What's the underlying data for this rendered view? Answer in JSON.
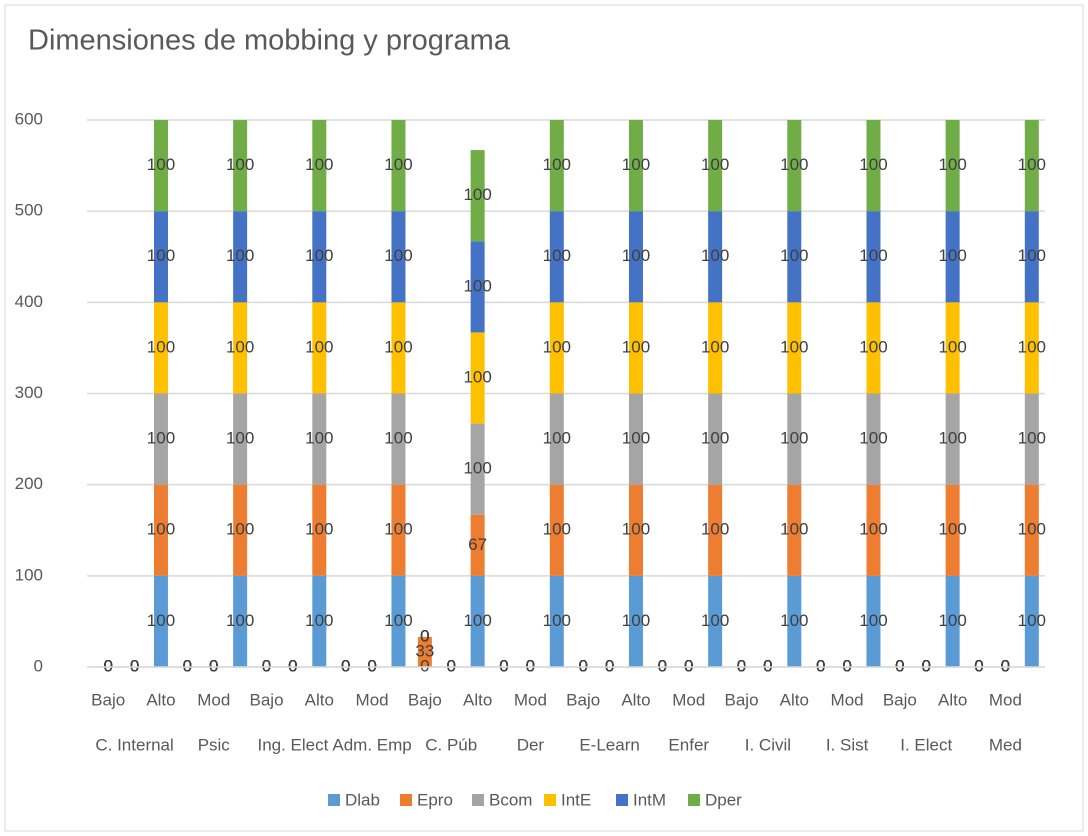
{
  "chart_data": {
    "type": "stacked_bar",
    "title": "Dimensiones de mobbing y programa",
    "categories": [
      "Bajo",
      null,
      "Alto",
      null,
      "Mod",
      null,
      "Bajo",
      null,
      "Alto",
      null,
      "Mod",
      null,
      "Bajo",
      null,
      "Alto",
      null,
      "Mod",
      null,
      "Bajo",
      null,
      "Alto",
      null,
      "Mod",
      null,
      "Bajo",
      null,
      "Alto",
      null,
      "Mod",
      null,
      "Bajo",
      null,
      "Alto",
      null,
      "Mod",
      null
    ],
    "groups": [
      "C. Internal",
      "Psic",
      "Ing. Elect",
      "Adm. Emp",
      "C. Púb",
      "Der",
      "E-Learn",
      "Enfer",
      "I. Civil",
      "I. Sist",
      "I. Elect",
      "Med"
    ],
    "series": [
      {
        "name": "Dlab",
        "color": "#5b9bd5",
        "values": [
          0,
          0,
          100,
          0,
          0,
          100,
          0,
          0,
          100,
          0,
          0,
          100,
          0,
          0,
          100,
          0,
          0,
          100,
          0,
          0,
          100,
          0,
          0,
          100,
          0,
          0,
          100,
          0,
          0,
          100,
          0,
          0,
          100,
          0,
          0,
          100
        ]
      },
      {
        "name": "Epro",
        "color": "#ed7d31",
        "values": [
          0,
          0,
          100,
          0,
          0,
          100,
          0,
          0,
          100,
          0,
          0,
          100,
          33,
          0,
          67,
          0,
          0,
          100,
          0,
          0,
          100,
          0,
          0,
          100,
          0,
          0,
          100,
          0,
          0,
          100,
          0,
          0,
          100,
          0,
          0,
          100
        ]
      },
      {
        "name": "Bcom",
        "color": "#a5a5a5",
        "values": [
          0,
          0,
          100,
          0,
          0,
          100,
          0,
          0,
          100,
          0,
          0,
          100,
          0,
          0,
          100,
          0,
          0,
          100,
          0,
          0,
          100,
          0,
          0,
          100,
          0,
          0,
          100,
          0,
          0,
          100,
          0,
          0,
          100,
          0,
          0,
          100
        ]
      },
      {
        "name": "IntE",
        "color": "#ffc000",
        "values": [
          0,
          0,
          100,
          0,
          0,
          100,
          0,
          0,
          100,
          0,
          0,
          100,
          0,
          0,
          100,
          0,
          0,
          100,
          0,
          0,
          100,
          0,
          0,
          100,
          0,
          0,
          100,
          0,
          0,
          100,
          0,
          0,
          100,
          0,
          0,
          100
        ]
      },
      {
        "name": "IntM",
        "color": "#4472c4",
        "values": [
          0,
          0,
          100,
          0,
          0,
          100,
          0,
          0,
          100,
          0,
          0,
          100,
          0,
          0,
          100,
          0,
          0,
          100,
          0,
          0,
          100,
          0,
          0,
          100,
          0,
          0,
          100,
          0,
          0,
          100,
          0,
          0,
          100,
          0,
          0,
          100
        ]
      },
      {
        "name": "Dper",
        "color": "#70ad47",
        "values": [
          0,
          0,
          100,
          0,
          0,
          100,
          0,
          0,
          100,
          0,
          0,
          100,
          0,
          0,
          100,
          0,
          0,
          100,
          0,
          0,
          100,
          0,
          0,
          100,
          0,
          0,
          100,
          0,
          0,
          100,
          0,
          0,
          100,
          0,
          0,
          100
        ]
      }
    ],
    "ylim": [
      0,
      600
    ],
    "yticks": [
      0,
      100,
      200,
      300,
      400,
      500,
      600
    ],
    "grid": true,
    "legend": "bottom"
  }
}
